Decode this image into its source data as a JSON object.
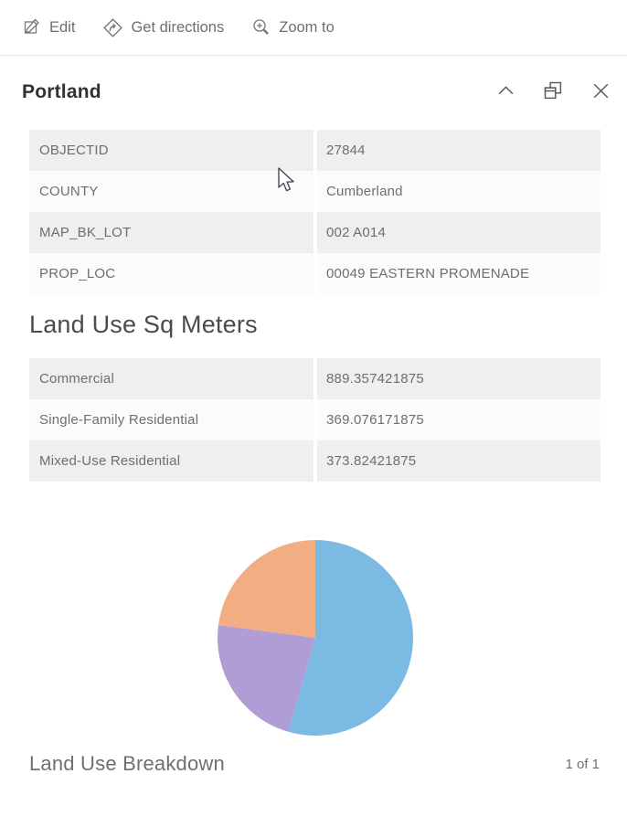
{
  "toolbar": {
    "edit_label": "Edit",
    "directions_label": "Get directions",
    "zoom_label": "Zoom to"
  },
  "header": {
    "title": "Portland"
  },
  "icons": {
    "edit": "pencil-over-square",
    "get_directions": "diamond-turn-arrow",
    "zoom_to": "magnifier-plus",
    "collapse": "chevron-up",
    "dock": "overlapping-windows",
    "close": "x-mark"
  },
  "attributes": {
    "rows": [
      {
        "label": "OBJECTID",
        "value": "27844"
      },
      {
        "label": "COUNTY",
        "value": "Cumberland"
      },
      {
        "label": "MAP_BK_LOT",
        "value": "002 A014"
      },
      {
        "label": "PROP_LOC",
        "value": "00049 EASTERN PROMENADE"
      }
    ]
  },
  "land_use": {
    "heading": "Land Use Sq Meters",
    "rows": [
      {
        "label": "Commercial",
        "value": "889.357421875"
      },
      {
        "label": "Single-Family Residential",
        "value": "369.076171875"
      },
      {
        "label": "Mixed-Use Residential",
        "value": "373.82421875"
      }
    ]
  },
  "chart_data": {
    "type": "pie",
    "title": "Land Use Breakdown",
    "units": "square meters",
    "start_angle_deg": 0,
    "direction": "clockwise",
    "legend": "none",
    "slices": [
      {
        "label": "Commercial",
        "value": 889.357421875,
        "percent": 54.49,
        "color": "#7bbae2"
      },
      {
        "label": "Single-Family Residential",
        "value": 369.076171875,
        "percent": 22.61,
        "color": "#b09dd5"
      },
      {
        "label": "Mixed-Use Residential",
        "value": 373.82421875,
        "percent": 22.9,
        "color": "#f3ad82"
      }
    ]
  },
  "footer": {
    "caption": "Land Use Breakdown",
    "pagination": "1 of 1"
  },
  "colors": {
    "row_shaded": "#efefef",
    "row_plain": "#fbfbfb",
    "text_primary": "#323232",
    "text_secondary": "#6e6e6e",
    "divider": "#e4e4e4"
  }
}
